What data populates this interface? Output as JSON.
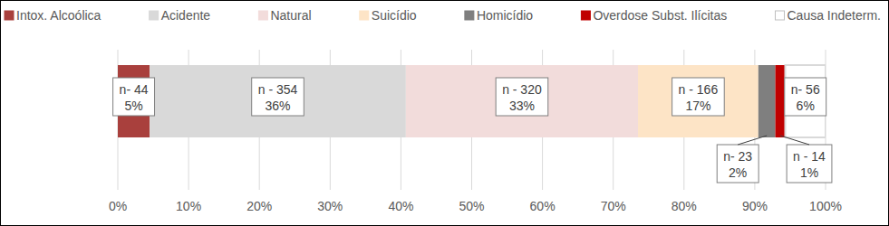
{
  "chart_data": {
    "type": "bar",
    "orientation": "horizontal",
    "stacked": true,
    "data_labels": true,
    "grid": true,
    "legend": "top",
    "categories": [
      null
    ],
    "xlim": [
      0,
      100
    ],
    "xticks": [
      {
        "value": 0,
        "label": "0%"
      },
      {
        "value": 10,
        "label": "10%"
      },
      {
        "value": 20,
        "label": "20%"
      },
      {
        "value": 30,
        "label": "30%"
      },
      {
        "value": 40,
        "label": "40%"
      },
      {
        "value": 50,
        "label": "50%"
      },
      {
        "value": 60,
        "label": "60%"
      },
      {
        "value": 70,
        "label": "70%"
      },
      {
        "value": 80,
        "label": "80%"
      },
      {
        "value": 90,
        "label": "90%"
      },
      {
        "value": 100,
        "label": "100%"
      }
    ],
    "series": [
      {
        "name": "Intox. Alcoólica",
        "color": "#a9403d",
        "values": [
          4.5
        ],
        "value_labels": [
          "5%"
        ],
        "count_labels": [
          "n- 44"
        ]
      },
      {
        "name": "Acidente",
        "color": "#d9d9d9",
        "values": [
          36.2
        ],
        "value_labels": [
          "36%"
        ],
        "count_labels": [
          "n - 354"
        ]
      },
      {
        "name": "Natural",
        "color": "#f2dcdb",
        "values": [
          32.8
        ],
        "value_labels": [
          "33%"
        ],
        "count_labels": [
          "n - 320"
        ]
      },
      {
        "name": "Suicídio",
        "color": "#fde4c6",
        "values": [
          17.0
        ],
        "value_labels": [
          "17%"
        ],
        "count_labels": [
          "n - 166"
        ]
      },
      {
        "name": "Homicídio",
        "color": "#7f7f7f",
        "values": [
          2.4
        ],
        "value_labels": [
          "2%"
        ],
        "count_labels": [
          "n- 23"
        ]
      },
      {
        "name": "Overdose Subst. Ilícitas",
        "color": "#c00000",
        "values": [
          1.4
        ],
        "value_labels": [
          "1%"
        ],
        "count_labels": [
          "n - 14"
        ]
      },
      {
        "name": "Causa Indeterm.",
        "color": "#ffffff",
        "values": [
          5.7
        ],
        "value_labels": [
          "6%"
        ],
        "count_labels": [
          "n- 56"
        ]
      }
    ]
  }
}
